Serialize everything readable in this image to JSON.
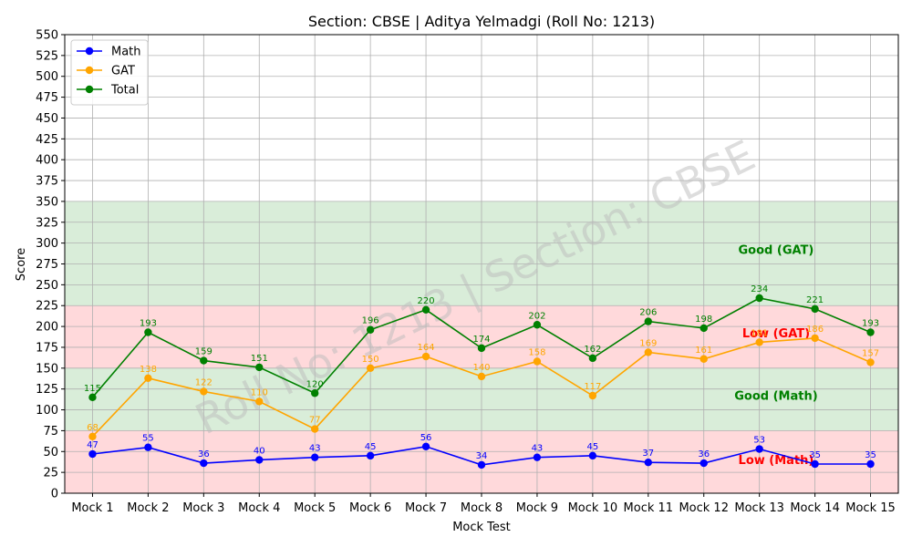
{
  "chart_data": {
    "type": "line",
    "title": "Section: CBSE | Aditya Yelmadgi (Roll No: 1213)",
    "xlabel": "Mock Test",
    "ylabel": "Score",
    "ylim": [
      0,
      550
    ],
    "ytick_step": 25,
    "grid": true,
    "legend_position": "top-left",
    "watermark": "Roll No: 1213 | Section: CBSE",
    "categories": [
      "Mock 1",
      "Mock 2",
      "Mock 3",
      "Mock 4",
      "Mock 5",
      "Mock 6",
      "Mock 7",
      "Mock 8",
      "Mock 9",
      "Mock 10",
      "Mock 11",
      "Mock 12",
      "Mock 13",
      "Mock 14",
      "Mock 15"
    ],
    "series": [
      {
        "name": "Math",
        "color": "#0000ff",
        "values": [
          47,
          55,
          36,
          40,
          43,
          45,
          56,
          34,
          43,
          45,
          37,
          36,
          53,
          35,
          35
        ]
      },
      {
        "name": "GAT",
        "color": "#ffa500",
        "values": [
          68,
          138,
          122,
          110,
          77,
          150,
          164,
          140,
          158,
          117,
          169,
          161,
          181,
          186,
          157
        ]
      },
      {
        "name": "Total",
        "color": "#008000",
        "values": [
          115,
          193,
          159,
          151,
          120,
          196,
          220,
          174,
          202,
          162,
          206,
          198,
          234,
          221,
          193
        ]
      }
    ],
    "bands": [
      {
        "from": 0,
        "to": 75,
        "color": "#ffb3b8"
      },
      {
        "from": 75,
        "to": 150,
        "color": "#b3dbb3"
      },
      {
        "from": 150,
        "to": 225,
        "color": "#ffb3b8"
      },
      {
        "from": 225,
        "to": 350,
        "color": "#b3dbb3"
      }
    ],
    "annotations": [
      {
        "text": "Low (Math)",
        "x": 12.3,
        "y": 35,
        "color": "#ff0000"
      },
      {
        "text": "Good (Math)",
        "x": 12.3,
        "y": 112,
        "color": "#008000"
      },
      {
        "text": "Low (GAT)",
        "x": 12.3,
        "y": 187,
        "color": "#ff0000"
      },
      {
        "text": "Good (GAT)",
        "x": 12.3,
        "y": 287,
        "color": "#008000"
      }
    ]
  }
}
